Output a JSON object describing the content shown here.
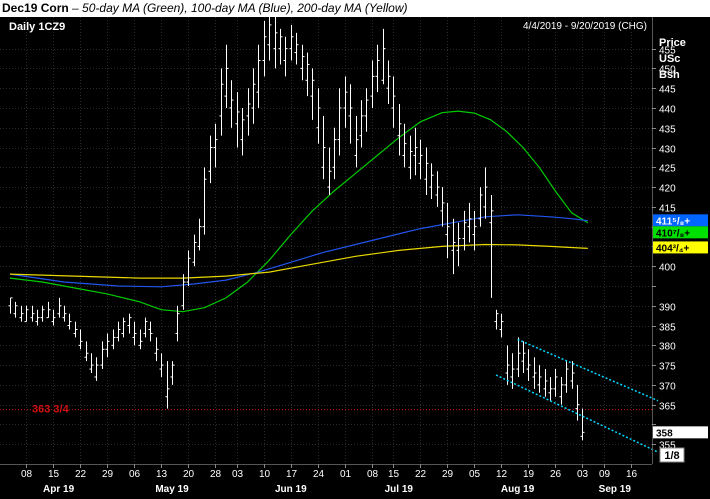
{
  "header": {
    "symbol_title": "Dec19 Corn",
    "description": " – 50-day MA (Green), 100-day MA (Blue), 200-day MA (Yellow)"
  },
  "chart_data": {
    "type": "line",
    "panel_label": "Daily 1CZ9",
    "date_range": "4/4/2019 - 9/20/2019 (CHG)",
    "axis_title": [
      "Price",
      "USc",
      "Bsh"
    ],
    "y_ticks": [
      355,
      360,
      365,
      370,
      375,
      380,
      385,
      390,
      395,
      400,
      405,
      410,
      415,
      420,
      425,
      430,
      435,
      440,
      445,
      450,
      455
    ],
    "y_tick_labels": [
      "355",
      "",
      "365",
      "370",
      "375",
      "380",
      "385",
      "390",
      "",
      "400",
      "",
      "410",
      "415",
      "420",
      "425",
      "430",
      "435",
      "440",
      "445",
      "450",
      "455"
    ],
    "ylim": [
      350,
      463
    ],
    "x_day_ticks": [
      {
        "label": "08",
        "i": 3
      },
      {
        "label": "15",
        "i": 8
      },
      {
        "label": "22",
        "i": 13
      },
      {
        "label": "29",
        "i": 18
      },
      {
        "label": "06",
        "i": 23
      },
      {
        "label": "13",
        "i": 28
      },
      {
        "label": "20",
        "i": 33
      },
      {
        "label": "28",
        "i": 38
      },
      {
        "label": "03",
        "i": 42
      },
      {
        "label": "10",
        "i": 47
      },
      {
        "label": "17",
        "i": 52
      },
      {
        "label": "24",
        "i": 57
      },
      {
        "label": "01",
        "i": 62
      },
      {
        "label": "08",
        "i": 67
      },
      {
        "label": "15",
        "i": 71
      },
      {
        "label": "22",
        "i": 76
      },
      {
        "label": "29",
        "i": 81
      },
      {
        "label": "05",
        "i": 86
      },
      {
        "label": "12",
        "i": 91
      },
      {
        "label": "19",
        "i": 96
      },
      {
        "label": "26",
        "i": 101
      },
      {
        "label": "03",
        "i": 106
      },
      {
        "label": "09",
        "i": 110
      },
      {
        "label": "16",
        "i": 115
      }
    ],
    "x_month_labels": [
      {
        "label": "Apr 19",
        "i": 9
      },
      {
        "label": "May 19",
        "i": 30
      },
      {
        "label": "Jun 19",
        "i": 52
      },
      {
        "label": "Jul 19",
        "i": 72
      },
      {
        "label": "Aug 19",
        "i": 94
      },
      {
        "label": "Sep 19",
        "i": 112
      }
    ],
    "n_days": 120,
    "bars": [
      [
        0,
        390,
        392,
        392,
        388
      ],
      [
        1,
        388,
        391,
        390,
        387
      ],
      [
        2,
        387,
        390,
        388,
        386
      ],
      [
        3,
        386,
        390,
        389,
        386
      ],
      [
        4,
        387,
        390,
        388,
        386
      ],
      [
        5,
        386,
        389,
        387,
        385
      ],
      [
        6,
        387,
        390,
        389,
        386
      ],
      [
        7,
        387,
        391,
        389,
        387
      ],
      [
        8,
        386,
        389,
        387,
        385
      ],
      [
        9,
        388,
        392,
        390,
        387
      ],
      [
        10,
        387,
        390,
        388,
        386
      ],
      [
        11,
        385,
        388,
        386,
        384
      ],
      [
        12,
        383,
        386,
        384,
        382
      ],
      [
        13,
        380,
        384,
        381,
        379
      ],
      [
        14,
        377,
        381,
        378,
        376
      ],
      [
        15,
        374,
        378,
        375,
        373
      ],
      [
        16,
        372,
        377,
        375,
        371
      ],
      [
        17,
        375,
        381,
        379,
        374
      ],
      [
        18,
        379,
        383,
        381,
        377
      ],
      [
        19,
        380,
        384,
        382,
        379
      ],
      [
        20,
        382,
        386,
        384,
        381
      ],
      [
        21,
        383,
        387,
        386,
        382
      ],
      [
        22,
        385,
        388,
        387,
        383
      ],
      [
        23,
        382,
        386,
        383,
        380
      ],
      [
        24,
        380,
        384,
        381,
        379
      ],
      [
        25,
        383,
        387,
        386,
        382
      ],
      [
        26,
        384,
        386,
        383,
        381
      ],
      [
        27,
        378,
        382,
        379,
        376
      ],
      [
        28,
        374,
        378,
        375,
        372
      ],
      [
        29,
        367,
        376,
        369,
        364
      ],
      [
        30,
        372,
        376,
        375,
        370
      ],
      [
        31,
        383,
        390,
        388,
        381
      ],
      [
        32,
        390,
        398,
        396,
        389
      ],
      [
        33,
        396,
        404,
        402,
        395
      ],
      [
        34,
        401,
        408,
        406,
        400
      ],
      [
        35,
        405,
        412,
        410,
        404
      ],
      [
        36,
        410,
        425,
        422,
        408
      ],
      [
        37,
        424,
        433,
        430,
        421
      ],
      [
        38,
        430,
        436,
        432,
        425
      ],
      [
        39,
        438,
        450,
        446,
        433
      ],
      [
        40,
        443,
        456,
        450,
        440
      ],
      [
        41,
        440,
        447,
        442,
        435
      ],
      [
        42,
        436,
        444,
        439,
        430
      ],
      [
        43,
        432,
        440,
        437,
        428
      ],
      [
        44,
        438,
        445,
        441,
        433
      ],
      [
        45,
        440,
        450,
        446,
        436
      ],
      [
        46,
        444,
        456,
        452,
        440
      ],
      [
        47,
        452,
        462,
        458,
        448
      ],
      [
        48,
        456,
        465,
        461,
        452
      ],
      [
        49,
        455,
        463,
        459,
        450
      ],
      [
        50,
        455,
        460,
        458,
        451
      ],
      [
        51,
        452,
        458,
        455,
        448
      ],
      [
        52,
        455,
        461,
        458,
        452
      ],
      [
        53,
        454,
        459,
        456,
        451
      ],
      [
        54,
        450,
        456,
        453,
        447
      ],
      [
        55,
        447,
        454,
        451,
        443
      ],
      [
        56,
        443,
        450,
        447,
        437
      ],
      [
        57,
        435,
        445,
        440,
        431
      ],
      [
        58,
        425,
        438,
        430,
        422
      ],
      [
        59,
        420,
        430,
        424,
        418
      ],
      [
        60,
        425,
        435,
        432,
        422
      ],
      [
        61,
        432,
        445,
        440,
        428
      ],
      [
        62,
        440,
        448,
        444,
        435
      ],
      [
        63,
        438,
        446,
        440,
        431
      ],
      [
        64,
        428,
        438,
        432,
        425
      ],
      [
        65,
        433,
        442,
        438,
        430
      ],
      [
        66,
        438,
        445,
        442,
        434
      ],
      [
        67,
        443,
        452,
        448,
        440
      ],
      [
        68,
        448,
        456,
        452,
        444
      ],
      [
        69,
        447,
        460,
        455,
        446
      ],
      [
        70,
        445,
        452,
        448,
        441
      ],
      [
        71,
        440,
        448,
        443,
        435
      ],
      [
        72,
        433,
        441,
        436,
        428
      ],
      [
        73,
        428,
        436,
        431,
        425
      ],
      [
        74,
        425,
        433,
        429,
        422
      ],
      [
        75,
        428,
        435,
        430,
        423
      ],
      [
        76,
        426,
        432,
        428,
        422
      ],
      [
        77,
        422,
        430,
        426,
        418
      ],
      [
        78,
        420,
        426,
        423,
        417
      ],
      [
        79,
        418,
        424,
        420,
        415
      ],
      [
        80,
        414,
        420,
        416,
        410
      ],
      [
        81,
        408,
        416,
        410,
        402
      ],
      [
        82,
        404,
        412,
        406,
        398
      ],
      [
        83,
        404,
        411,
        407,
        400
      ],
      [
        84,
        407,
        414,
        411,
        404
      ],
      [
        85,
        410,
        416,
        412,
        406
      ],
      [
        86,
        408,
        414,
        410,
        404
      ],
      [
        87,
        412,
        420,
        418,
        410
      ],
      [
        88,
        415,
        425,
        420,
        412
      ],
      [
        89,
        411,
        418,
        414,
        392
      ],
      [
        90,
        386,
        389,
        388,
        384
      ],
      [
        91,
        384,
        388,
        386,
        382
      ],
      [
        92,
        373,
        380,
        375,
        370
      ],
      [
        93,
        372,
        378,
        374,
        369
      ],
      [
        94,
        374,
        382,
        378,
        372
      ],
      [
        95,
        376,
        381,
        378,
        373
      ],
      [
        96,
        374,
        379,
        375,
        371
      ],
      [
        97,
        372,
        377,
        373,
        369
      ],
      [
        98,
        370,
        375,
        372,
        368
      ],
      [
        99,
        369,
        374,
        371,
        367
      ],
      [
        100,
        368,
        372,
        369,
        366
      ],
      [
        101,
        369,
        374,
        372,
        367
      ],
      [
        102,
        367,
        372,
        370,
        365
      ],
      [
        103,
        370,
        376,
        374,
        368
      ],
      [
        104,
        371,
        376,
        373,
        369
      ],
      [
        105,
        364,
        370,
        365,
        361
      ],
      [
        106,
        357,
        364,
        358,
        356
      ]
    ],
    "series": [
      {
        "color": "#00cc00",
        "points": [
          [
            0,
            397
          ],
          [
            6,
            396
          ],
          [
            12,
            394.5
          ],
          [
            18,
            393
          ],
          [
            24,
            391
          ],
          [
            28,
            389
          ],
          [
            32,
            388.5
          ],
          [
            36,
            389.5
          ],
          [
            40,
            392
          ],
          [
            44,
            396
          ],
          [
            48,
            401.5
          ],
          [
            52,
            408
          ],
          [
            56,
            414
          ],
          [
            60,
            419
          ],
          [
            64,
            423.5
          ],
          [
            68,
            428
          ],
          [
            72,
            432.5
          ],
          [
            76,
            436.5
          ],
          [
            80,
            438.8
          ],
          [
            83,
            439.2
          ],
          [
            86,
            438.7
          ],
          [
            89,
            437
          ],
          [
            92,
            434
          ],
          [
            95,
            430
          ],
          [
            98,
            425
          ],
          [
            101,
            419
          ],
          [
            104,
            413.5
          ],
          [
            107,
            411
          ]
        ]
      },
      {
        "color": "#2255ee",
        "points": [
          [
            0,
            398
          ],
          [
            10,
            396
          ],
          [
            20,
            395
          ],
          [
            28,
            394.8
          ],
          [
            34,
            395.5
          ],
          [
            40,
            396.5
          ],
          [
            46,
            398.5
          ],
          [
            52,
            401
          ],
          [
            58,
            403.5
          ],
          [
            64,
            405.5
          ],
          [
            70,
            407.5
          ],
          [
            76,
            409.5
          ],
          [
            82,
            411
          ],
          [
            88,
            412.5
          ],
          [
            94,
            413
          ],
          [
            100,
            412.5
          ],
          [
            104,
            412
          ],
          [
            107,
            411.5
          ]
        ]
      },
      {
        "color": "#e8d800",
        "points": [
          [
            0,
            398
          ],
          [
            12,
            397.5
          ],
          [
            24,
            397
          ],
          [
            32,
            397
          ],
          [
            40,
            397.5
          ],
          [
            48,
            398.5
          ],
          [
            56,
            400.5
          ],
          [
            64,
            402.5
          ],
          [
            72,
            404
          ],
          [
            80,
            405
          ],
          [
            88,
            405.5
          ],
          [
            94,
            405.4
          ],
          [
            100,
            405
          ],
          [
            107,
            404.5
          ]
        ]
      }
    ],
    "channel": {
      "color": "#00d8ff",
      "upper": [
        [
          94,
          381.5
        ],
        [
          120,
          366
        ]
      ],
      "lower": [
        [
          90,
          372.5
        ],
        [
          120,
          353
        ]
      ]
    },
    "hline": {
      "label": "363 3/4",
      "value": 363.75,
      "color": "#d01010"
    },
    "value_tags": [
      {
        "label": "411⁵/₈+",
        "value": 411.6,
        "bg": "#0066ff",
        "fg": "#ffffff"
      },
      {
        "label": "410⁷/₈+",
        "value": 410.9,
        "bg": "#00e000",
        "fg": "#000000"
      },
      {
        "label": "404³/₄+",
        "value": 404.75,
        "bg": "#ffff00",
        "fg": "#000000"
      },
      {
        "label": "358",
        "value": 358,
        "bg": "#ffffff",
        "fg": "#000000"
      }
    ],
    "corner_label": "1/8"
  }
}
